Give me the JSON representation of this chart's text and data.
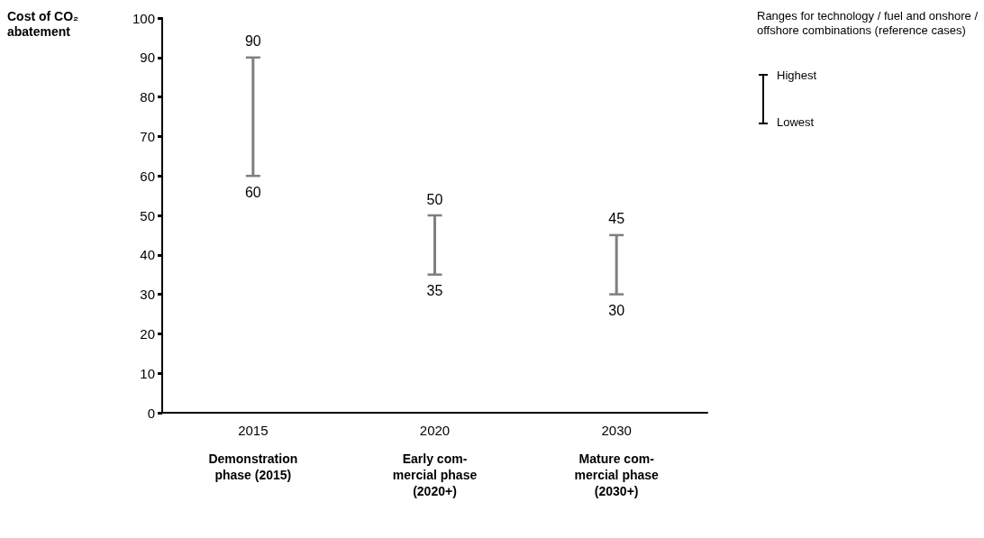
{
  "chart_data": {
    "type": "bar",
    "ylabel": "Cost of CO₂ abatement",
    "legend_title": "Ranges for technology / fuel and onshore / offshore combinations (reference cases)",
    "categories": [
      "2015",
      "2020",
      "2030"
    ],
    "base": [
      60,
      35,
      30
    ],
    "values": [
      30,
      15,
      15
    ],
    "color": "#7f7f7f",
    "ylim": [
      0,
      100
    ],
    "yticks": [
      0,
      10,
      20,
      30,
      40,
      50,
      60,
      70,
      80,
      90,
      100
    ],
    "grid": false,
    "annotations": [
      {
        "text": "90",
        "x": "2015",
        "y": 90
      },
      {
        "text": "60",
        "x": "2015",
        "y": 60
      },
      {
        "text": "50",
        "x": "2020",
        "y": 50
      },
      {
        "text": "35",
        "x": "2020",
        "y": 35
      },
      {
        "text": "45",
        "x": "2030",
        "y": 45
      },
      {
        "text": "30",
        "x": "2030",
        "y": 30
      },
      "Demonstration\nphase (2015)",
      "Early com-\nmercial phase\n(2020+)",
      "Mature com-\nmercial phase\n(2030+)",
      "Highest",
      "Lowest"
    ]
  }
}
